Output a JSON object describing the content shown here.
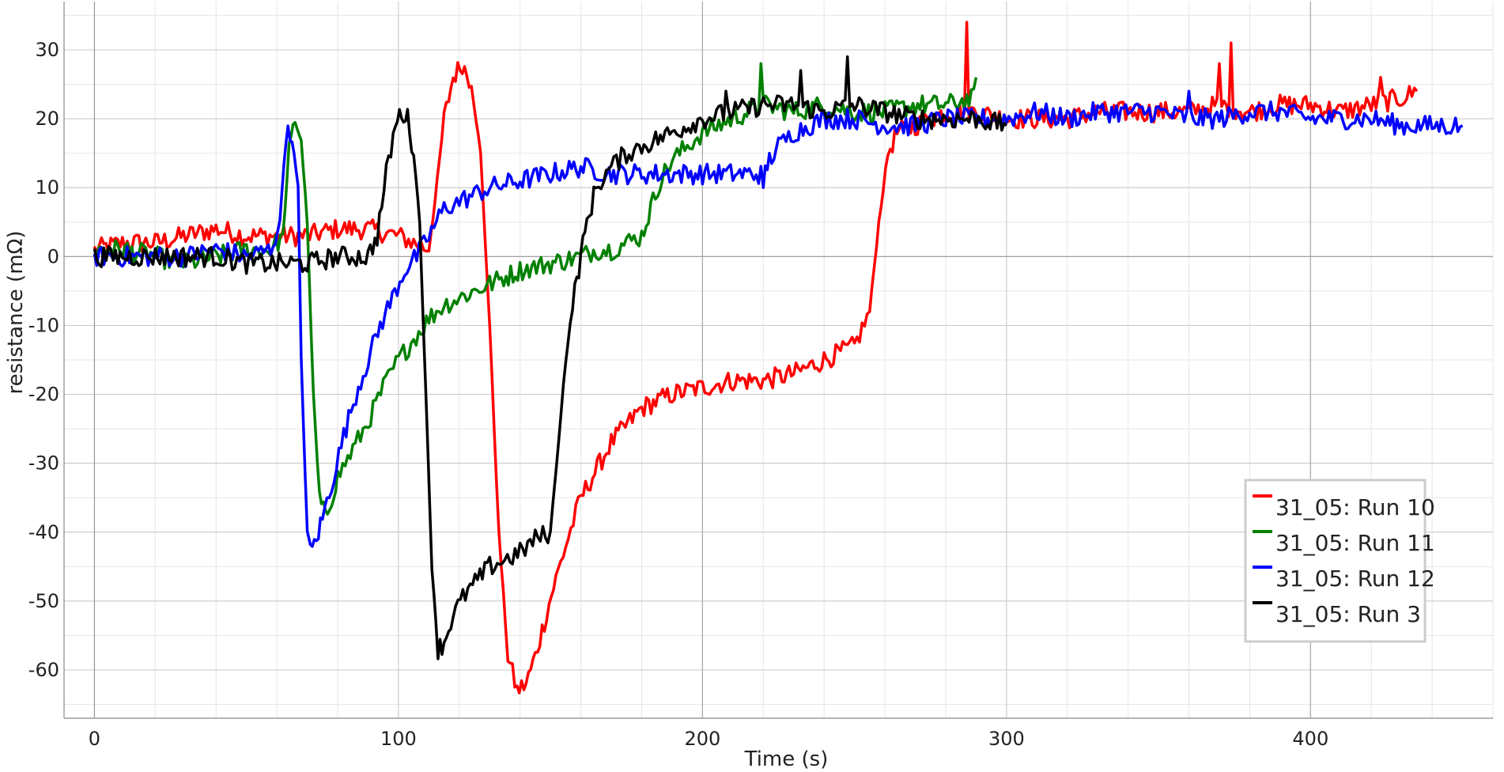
{
  "chart_data": {
    "type": "line",
    "xlabel": "Time (s)",
    "ylabel": "resistance (mΩ)",
    "xlim": [
      -10,
      460
    ],
    "ylim": [
      -67,
      37
    ],
    "x_ticks": [
      0,
      100,
      200,
      300,
      400
    ],
    "y_ticks": [
      -60,
      -50,
      -40,
      -30,
      -20,
      -10,
      0,
      10,
      20,
      30
    ],
    "x_minor_step": 20,
    "y_minor_step": 5,
    "grid": true,
    "legend_position": "lower-right",
    "series": [
      {
        "name": "31_05: Run 10",
        "color": "#ff0000",
        "points": [
          [
            0,
            1
          ],
          [
            10,
            2
          ],
          [
            20,
            2
          ],
          [
            30,
            3
          ],
          [
            40,
            4
          ],
          [
            50,
            3
          ],
          [
            60,
            3
          ],
          [
            70,
            3
          ],
          [
            80,
            4
          ],
          [
            90,
            4
          ],
          [
            100,
            3
          ],
          [
            105,
            2
          ],
          [
            110,
            1
          ],
          [
            112,
            8
          ],
          [
            115,
            20
          ],
          [
            118,
            26
          ],
          [
            121,
            28
          ],
          [
            124,
            25
          ],
          [
            127,
            15
          ],
          [
            130,
            -10
          ],
          [
            133,
            -40
          ],
          [
            136,
            -58
          ],
          [
            139,
            -63
          ],
          [
            142,
            -62
          ],
          [
            145,
            -58
          ],
          [
            148,
            -53
          ],
          [
            151,
            -48
          ],
          [
            155,
            -42
          ],
          [
            160,
            -35
          ],
          [
            170,
            -27
          ],
          [
            180,
            -22
          ],
          [
            190,
            -20
          ],
          [
            200,
            -19
          ],
          [
            210,
            -18
          ],
          [
            220,
            -18
          ],
          [
            230,
            -17
          ],
          [
            240,
            -15
          ],
          [
            250,
            -13
          ],
          [
            255,
            -8
          ],
          [
            258,
            5
          ],
          [
            261,
            15
          ],
          [
            264,
            18
          ],
          [
            270,
            19
          ],
          [
            280,
            21
          ],
          [
            290,
            21
          ],
          [
            300,
            20
          ],
          [
            310,
            20
          ],
          [
            320,
            20
          ],
          [
            330,
            21
          ],
          [
            340,
            21
          ],
          [
            350,
            21
          ],
          [
            360,
            21
          ],
          [
            370,
            22
          ],
          [
            380,
            21
          ],
          [
            390,
            22
          ],
          [
            400,
            22
          ],
          [
            410,
            21
          ],
          [
            420,
            22
          ],
          [
            430,
            23
          ],
          [
            435,
            24
          ]
        ],
        "spikes": [
          [
            287,
            34
          ],
          [
            374,
            31
          ],
          [
            370,
            28
          ],
          [
            423,
            26
          ]
        ]
      },
      {
        "name": "31_05: Run 11",
        "color": "#008000",
        "points": [
          [
            0,
            1
          ],
          [
            10,
            1
          ],
          [
            20,
            0
          ],
          [
            30,
            -1
          ],
          [
            40,
            0
          ],
          [
            50,
            1
          ],
          [
            58,
            1
          ],
          [
            62,
            3
          ],
          [
            64,
            15
          ],
          [
            66,
            20
          ],
          [
            68,
            17
          ],
          [
            70,
            5
          ],
          [
            72,
            -20
          ],
          [
            74,
            -35
          ],
          [
            76,
            -38
          ],
          [
            78,
            -35
          ],
          [
            80,
            -32
          ],
          [
            85,
            -28
          ],
          [
            90,
            -24
          ],
          [
            95,
            -19
          ],
          [
            100,
            -15
          ],
          [
            105,
            -12
          ],
          [
            110,
            -9
          ],
          [
            115,
            -7
          ],
          [
            120,
            -6
          ],
          [
            125,
            -5
          ],
          [
            130,
            -4
          ],
          [
            140,
            -2
          ],
          [
            150,
            -1
          ],
          [
            160,
            0
          ],
          [
            165,
            1
          ],
          [
            170,
            1
          ],
          [
            175,
            2
          ],
          [
            180,
            3
          ],
          [
            183,
            7
          ],
          [
            186,
            11
          ],
          [
            190,
            14
          ],
          [
            195,
            16
          ],
          [
            200,
            18
          ],
          [
            210,
            20
          ],
          [
            220,
            22
          ],
          [
            230,
            21
          ],
          [
            240,
            22
          ],
          [
            250,
            21
          ],
          [
            260,
            21
          ],
          [
            270,
            22
          ],
          [
            280,
            22
          ],
          [
            290,
            23
          ]
        ],
        "spikes": [
          [
            219,
            28
          ],
          [
            291,
            26
          ]
        ]
      },
      {
        "name": "31_05: Run 12",
        "color": "#0000ff",
        "points": [
          [
            0,
            0
          ],
          [
            10,
            0
          ],
          [
            20,
            0
          ],
          [
            30,
            0
          ],
          [
            40,
            1
          ],
          [
            50,
            0
          ],
          [
            58,
            1
          ],
          [
            61,
            5
          ],
          [
            63,
            18
          ],
          [
            65,
            17
          ],
          [
            67,
            10
          ],
          [
            68,
            -15
          ],
          [
            70,
            -40
          ],
          [
            71,
            -43
          ],
          [
            73,
            -41
          ],
          [
            75,
            -38
          ],
          [
            78,
            -33
          ],
          [
            82,
            -26
          ],
          [
            86,
            -20
          ],
          [
            90,
            -15
          ],
          [
            94,
            -10
          ],
          [
            98,
            -6
          ],
          [
            102,
            -2
          ],
          [
            106,
            0
          ],
          [
            110,
            3
          ],
          [
            115,
            7
          ],
          [
            120,
            8
          ],
          [
            125,
            9
          ],
          [
            130,
            10
          ],
          [
            140,
            11
          ],
          [
            150,
            12
          ],
          [
            160,
            13
          ],
          [
            170,
            12
          ],
          [
            180,
            12
          ],
          [
            190,
            12
          ],
          [
            200,
            12
          ],
          [
            210,
            12
          ],
          [
            220,
            12
          ],
          [
            222,
            14
          ],
          [
            225,
            16
          ],
          [
            230,
            18
          ],
          [
            240,
            20
          ],
          [
            250,
            20
          ],
          [
            260,
            19
          ],
          [
            270,
            19
          ],
          [
            280,
            20
          ],
          [
            290,
            20
          ],
          [
            300,
            20
          ],
          [
            310,
            21
          ],
          [
            320,
            20
          ],
          [
            330,
            21
          ],
          [
            340,
            21
          ],
          [
            350,
            21
          ],
          [
            360,
            20
          ],
          [
            370,
            20
          ],
          [
            380,
            21
          ],
          [
            390,
            21
          ],
          [
            400,
            20
          ],
          [
            410,
            20
          ],
          [
            420,
            20
          ],
          [
            430,
            19
          ],
          [
            440,
            19
          ],
          [
            450,
            19
          ]
        ],
        "spikes": [
          [
            220,
            10
          ],
          [
            360,
            24
          ]
        ]
      },
      {
        "name": "31_05: Run 3",
        "color": "#000000",
        "points": [
          [
            0,
            0
          ],
          [
            10,
            0
          ],
          [
            20,
            0
          ],
          [
            30,
            0
          ],
          [
            40,
            0
          ],
          [
            50,
            -1
          ],
          [
            60,
            -1
          ],
          [
            70,
            -1
          ],
          [
            80,
            0
          ],
          [
            90,
            0
          ],
          [
            93,
            3
          ],
          [
            96,
            12
          ],
          [
            99,
            19
          ],
          [
            101,
            21
          ],
          [
            103,
            20
          ],
          [
            105,
            15
          ],
          [
            107,
            5
          ],
          [
            109,
            -20
          ],
          [
            111,
            -45
          ],
          [
            113,
            -57
          ],
          [
            115,
            -56
          ],
          [
            118,
            -52
          ],
          [
            122,
            -49
          ],
          [
            126,
            -47
          ],
          [
            130,
            -45
          ],
          [
            135,
            -44
          ],
          [
            140,
            -43
          ],
          [
            145,
            -41
          ],
          [
            150,
            -40
          ],
          [
            152,
            -30
          ],
          [
            155,
            -15
          ],
          [
            158,
            -5
          ],
          [
            160,
            0
          ],
          [
            162,
            5
          ],
          [
            165,
            10
          ],
          [
            170,
            13
          ],
          [
            175,
            15
          ],
          [
            180,
            16
          ],
          [
            190,
            18
          ],
          [
            200,
            20
          ],
          [
            210,
            21
          ],
          [
            220,
            22
          ],
          [
            230,
            22
          ],
          [
            240,
            21
          ],
          [
            250,
            22
          ],
          [
            260,
            21
          ],
          [
            270,
            20
          ],
          [
            280,
            20
          ],
          [
            290,
            20
          ],
          [
            300,
            19
          ]
        ],
        "spikes": [
          [
            248,
            29
          ],
          [
            232,
            27
          ],
          [
            208,
            24
          ]
        ]
      }
    ]
  }
}
